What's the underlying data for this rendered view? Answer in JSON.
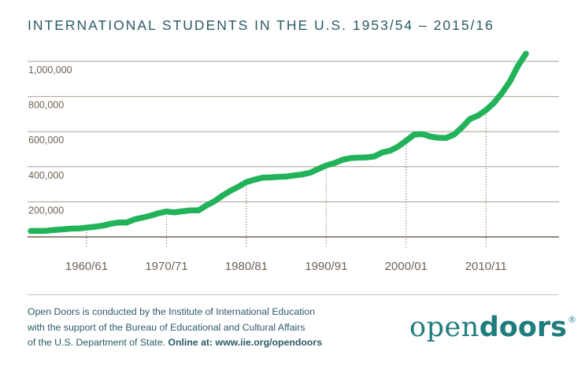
{
  "title": "INTERNATIONAL STUDENTS IN THE U.S. 1953/54 – 2015/16",
  "footnote": {
    "line1": "Open Doors is conducted by the Institute of International Education",
    "line2": "with the support of the Bureau of Educational and Cultural Affairs",
    "line3_plain": "of the U.S. Department of State. ",
    "line3_bold": "Online at: www.iie.org/opendoors"
  },
  "logo": {
    "light": "open",
    "bold": "doors",
    "mark": "®"
  },
  "colors": {
    "line": "#22b35a",
    "title": "#2b5a66",
    "axis": "#6e6355",
    "grid": "#a89f91",
    "logo": "#1f7e7d"
  },
  "chart_data": {
    "type": "line",
    "title": "INTERNATIONAL STUDENTS IN THE U.S. 1953/54 – 2015/16",
    "xlabel": "",
    "ylabel": "",
    "ylim": [
      0,
      1000000
    ],
    "xlim": [
      1953,
      2015
    ],
    "grid": "horizontal",
    "y_ticks": [
      200000,
      400000,
      600000,
      800000,
      1000000
    ],
    "y_tick_labels": [
      "200,000",
      "400,000",
      "600,000",
      "800,000",
      "1,000,000"
    ],
    "x_ticks": [
      1960,
      1970,
      1980,
      1990,
      2000,
      2010
    ],
    "x_tick_labels": [
      "1960/61",
      "1970/71",
      "1980/81",
      "1990/91",
      "2000/01",
      "2010/11"
    ],
    "series": [
      {
        "x": [
          1953,
          1954,
          1955,
          1956,
          1957,
          1958,
          1959,
          1960,
          1961,
          1962,
          1963,
          1964,
          1965,
          1966,
          1967,
          1968,
          1969,
          1970,
          1971,
          1972,
          1973,
          1974,
          1975,
          1976,
          1977,
          1978,
          1979,
          1980,
          1981,
          1982,
          1983,
          1984,
          1985,
          1986,
          1987,
          1988,
          1989,
          1990,
          1991,
          1992,
          1993,
          1994,
          1995,
          1996,
          1997,
          1998,
          1999,
          2000,
          2001,
          2002,
          2003,
          2004,
          2005,
          2006,
          2007,
          2008,
          2009,
          2010,
          2011,
          2012,
          2013,
          2014,
          2015
        ],
        "y": [
          34000,
          34000,
          35000,
          40000,
          43000,
          47000,
          48000,
          53000,
          58000,
          64000,
          75000,
          82000,
          82000,
          100000,
          110000,
          121000,
          135000,
          145000,
          140000,
          146000,
          151000,
          151000,
          179000,
          203000,
          235000,
          263000,
          286000,
          312000,
          326000,
          337000,
          339000,
          342000,
          344000,
          350000,
          356000,
          366000,
          387000,
          407000,
          420000,
          439000,
          449000,
          452000,
          453000,
          458000,
          481000,
          491000,
          515000,
          548000,
          583000,
          586000,
          572000,
          565000,
          564000,
          583000,
          624000,
          672000,
          691000,
          723000,
          764000,
          820000,
          886000,
          975000,
          1044000
        ]
      }
    ]
  }
}
